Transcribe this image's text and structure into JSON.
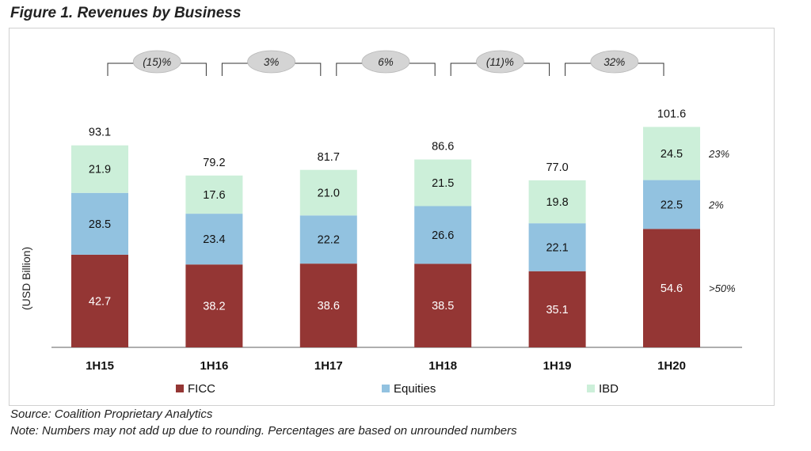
{
  "figure": {
    "title": "Figure 1. Revenues by Business",
    "source": "Source: Coalition Proprietary Analytics",
    "note": "Note: Numbers may not add up due to rounding. Percentages are based on unrounded numbers"
  },
  "chart_data": {
    "type": "bar",
    "stacked": true,
    "title": "",
    "xlabel": "",
    "ylabel": "(USD Billion)",
    "ylim": [
      0,
      110
    ],
    "grid": false,
    "legend_position": "bottom",
    "categories": [
      "1H15",
      "1H16",
      "1H17",
      "1H18",
      "1H19",
      "1H20"
    ],
    "series": [
      {
        "name": "FICC",
        "color": "#943634",
        "values": [
          42.7,
          38.2,
          38.6,
          38.5,
          35.1,
          54.6
        ]
      },
      {
        "name": "Equities",
        "color": "#92c2e0",
        "values": [
          28.5,
          23.4,
          22.2,
          26.6,
          22.1,
          22.5
        ]
      },
      {
        "name": "IBD",
        "color": "#ccefd9",
        "values": [
          21.9,
          17.6,
          21.0,
          21.5,
          19.8,
          24.5
        ]
      }
    ],
    "value_labels": [
      [
        "42.7",
        "38.2",
        "38.6",
        "38.5",
        "35.1",
        "54.6"
      ],
      [
        "28.5",
        "23.4",
        "22.2",
        "26.6",
        "22.1",
        "22.5"
      ],
      [
        "21.9",
        "17.6",
        "21.0",
        "21.5",
        "19.8",
        "24.5"
      ]
    ],
    "totals": [
      93.1,
      79.2,
      81.7,
      86.6,
      77.0,
      101.6
    ],
    "total_labels": [
      "93.1",
      "79.2",
      "81.7",
      "86.6",
      "77.0",
      "101.6"
    ],
    "growth": [
      {
        "from": "1H15",
        "to": "1H16",
        "label": "(15)%"
      },
      {
        "from": "1H16",
        "to": "1H17",
        "label": "3%"
      },
      {
        "from": "1H17",
        "to": "1H18",
        "label": "6%"
      },
      {
        "from": "1H18",
        "to": "1H19",
        "label": "(11)%"
      },
      {
        "from": "1H19",
        "to": "1H20",
        "label": "32%"
      }
    ],
    "side_annotations": [
      {
        "series": "IBD",
        "label": "23%"
      },
      {
        "series": "Equities",
        "label": "2%"
      },
      {
        "series": "FICC",
        "label": ">50%"
      }
    ]
  }
}
